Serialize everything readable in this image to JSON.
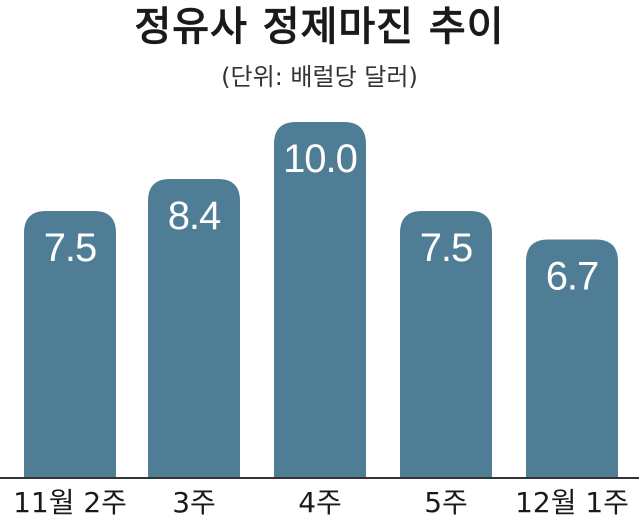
{
  "chart_data": {
    "type": "bar",
    "title": "정유사 정제마진 추이",
    "subtitle": "(단위: 배럴당 달러)",
    "categories": [
      "11월 2주",
      "3주",
      "4주",
      "5주",
      "12월 1주"
    ],
    "values": [
      7.5,
      8.4,
      10.0,
      7.5,
      6.7
    ],
    "value_labels": [
      "7.5",
      "8.4",
      "10.0",
      "7.5",
      "6.7"
    ],
    "ylim": [
      0,
      10.0
    ],
    "grid": false,
    "legend": "none",
    "bar_color": "#4f7d95",
    "label_color": "#ffffff"
  }
}
